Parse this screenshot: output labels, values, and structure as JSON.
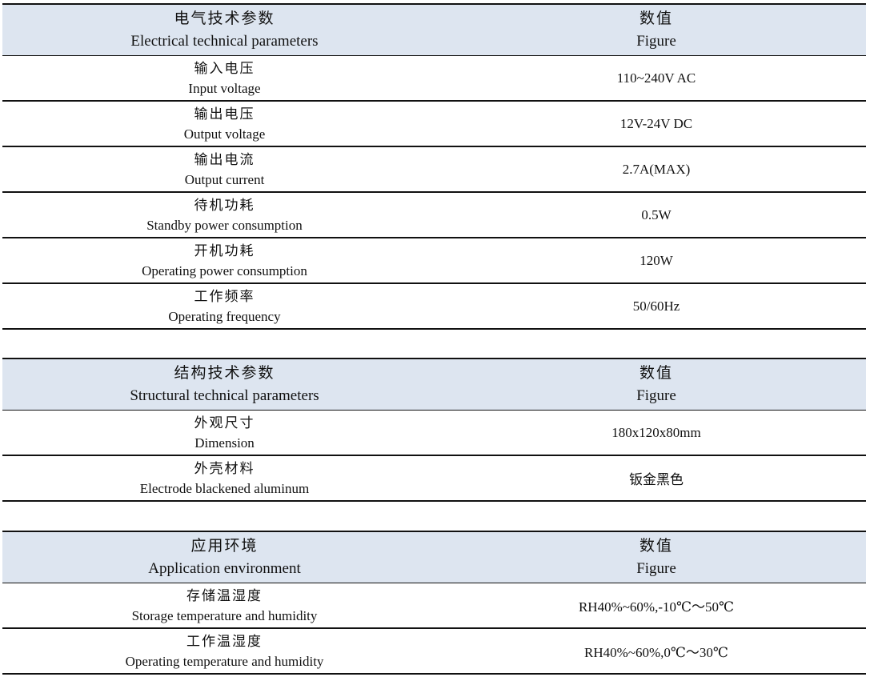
{
  "tables": [
    {
      "header": {
        "param_zh": "电气技术参数",
        "param_en": "Electrical technical parameters",
        "value_zh": "数值",
        "value_en": "Figure"
      },
      "rows": [
        {
          "zh": "输入电压",
          "en": "Input voltage",
          "value": "110~240V AC"
        },
        {
          "zh": "输出电压",
          "en": "Output voltage",
          "value": "12V-24V DC"
        },
        {
          "zh": "输出电流",
          "en": "Output current",
          "value": "2.7A(MAX)"
        },
        {
          "zh": "待机功耗",
          "en": "Standby power consumption",
          "value": "0.5W"
        },
        {
          "zh": "开机功耗",
          "en": "Operating power consumption",
          "value": "120W"
        },
        {
          "zh": "工作频率",
          "en": "Operating frequency",
          "value": "50/60Hz"
        }
      ]
    },
    {
      "header": {
        "param_zh": "结构技术参数",
        "param_en": "Structural technical parameters",
        "value_zh": "数值",
        "value_en": "Figure"
      },
      "rows": [
        {
          "zh": "外观尺寸",
          "en": "Dimension",
          "value": "180x120x80mm"
        },
        {
          "zh": "外壳材料",
          "en": "Electrode blackened aluminum",
          "value": "钣金黑色"
        }
      ]
    },
    {
      "header": {
        "param_zh": "应用环境",
        "param_en": "Application environment",
        "value_zh": "数值",
        "value_en": "Figure"
      },
      "rows": [
        {
          "zh": "存储温湿度",
          "en": "Storage temperature and humidity",
          "value": "RH40%~60%,-10℃～50℃"
        },
        {
          "zh": "工作温湿度",
          "en": "Operating temperature and humidity",
          "value": "RH40%~60%,0℃～30℃"
        }
      ]
    }
  ]
}
